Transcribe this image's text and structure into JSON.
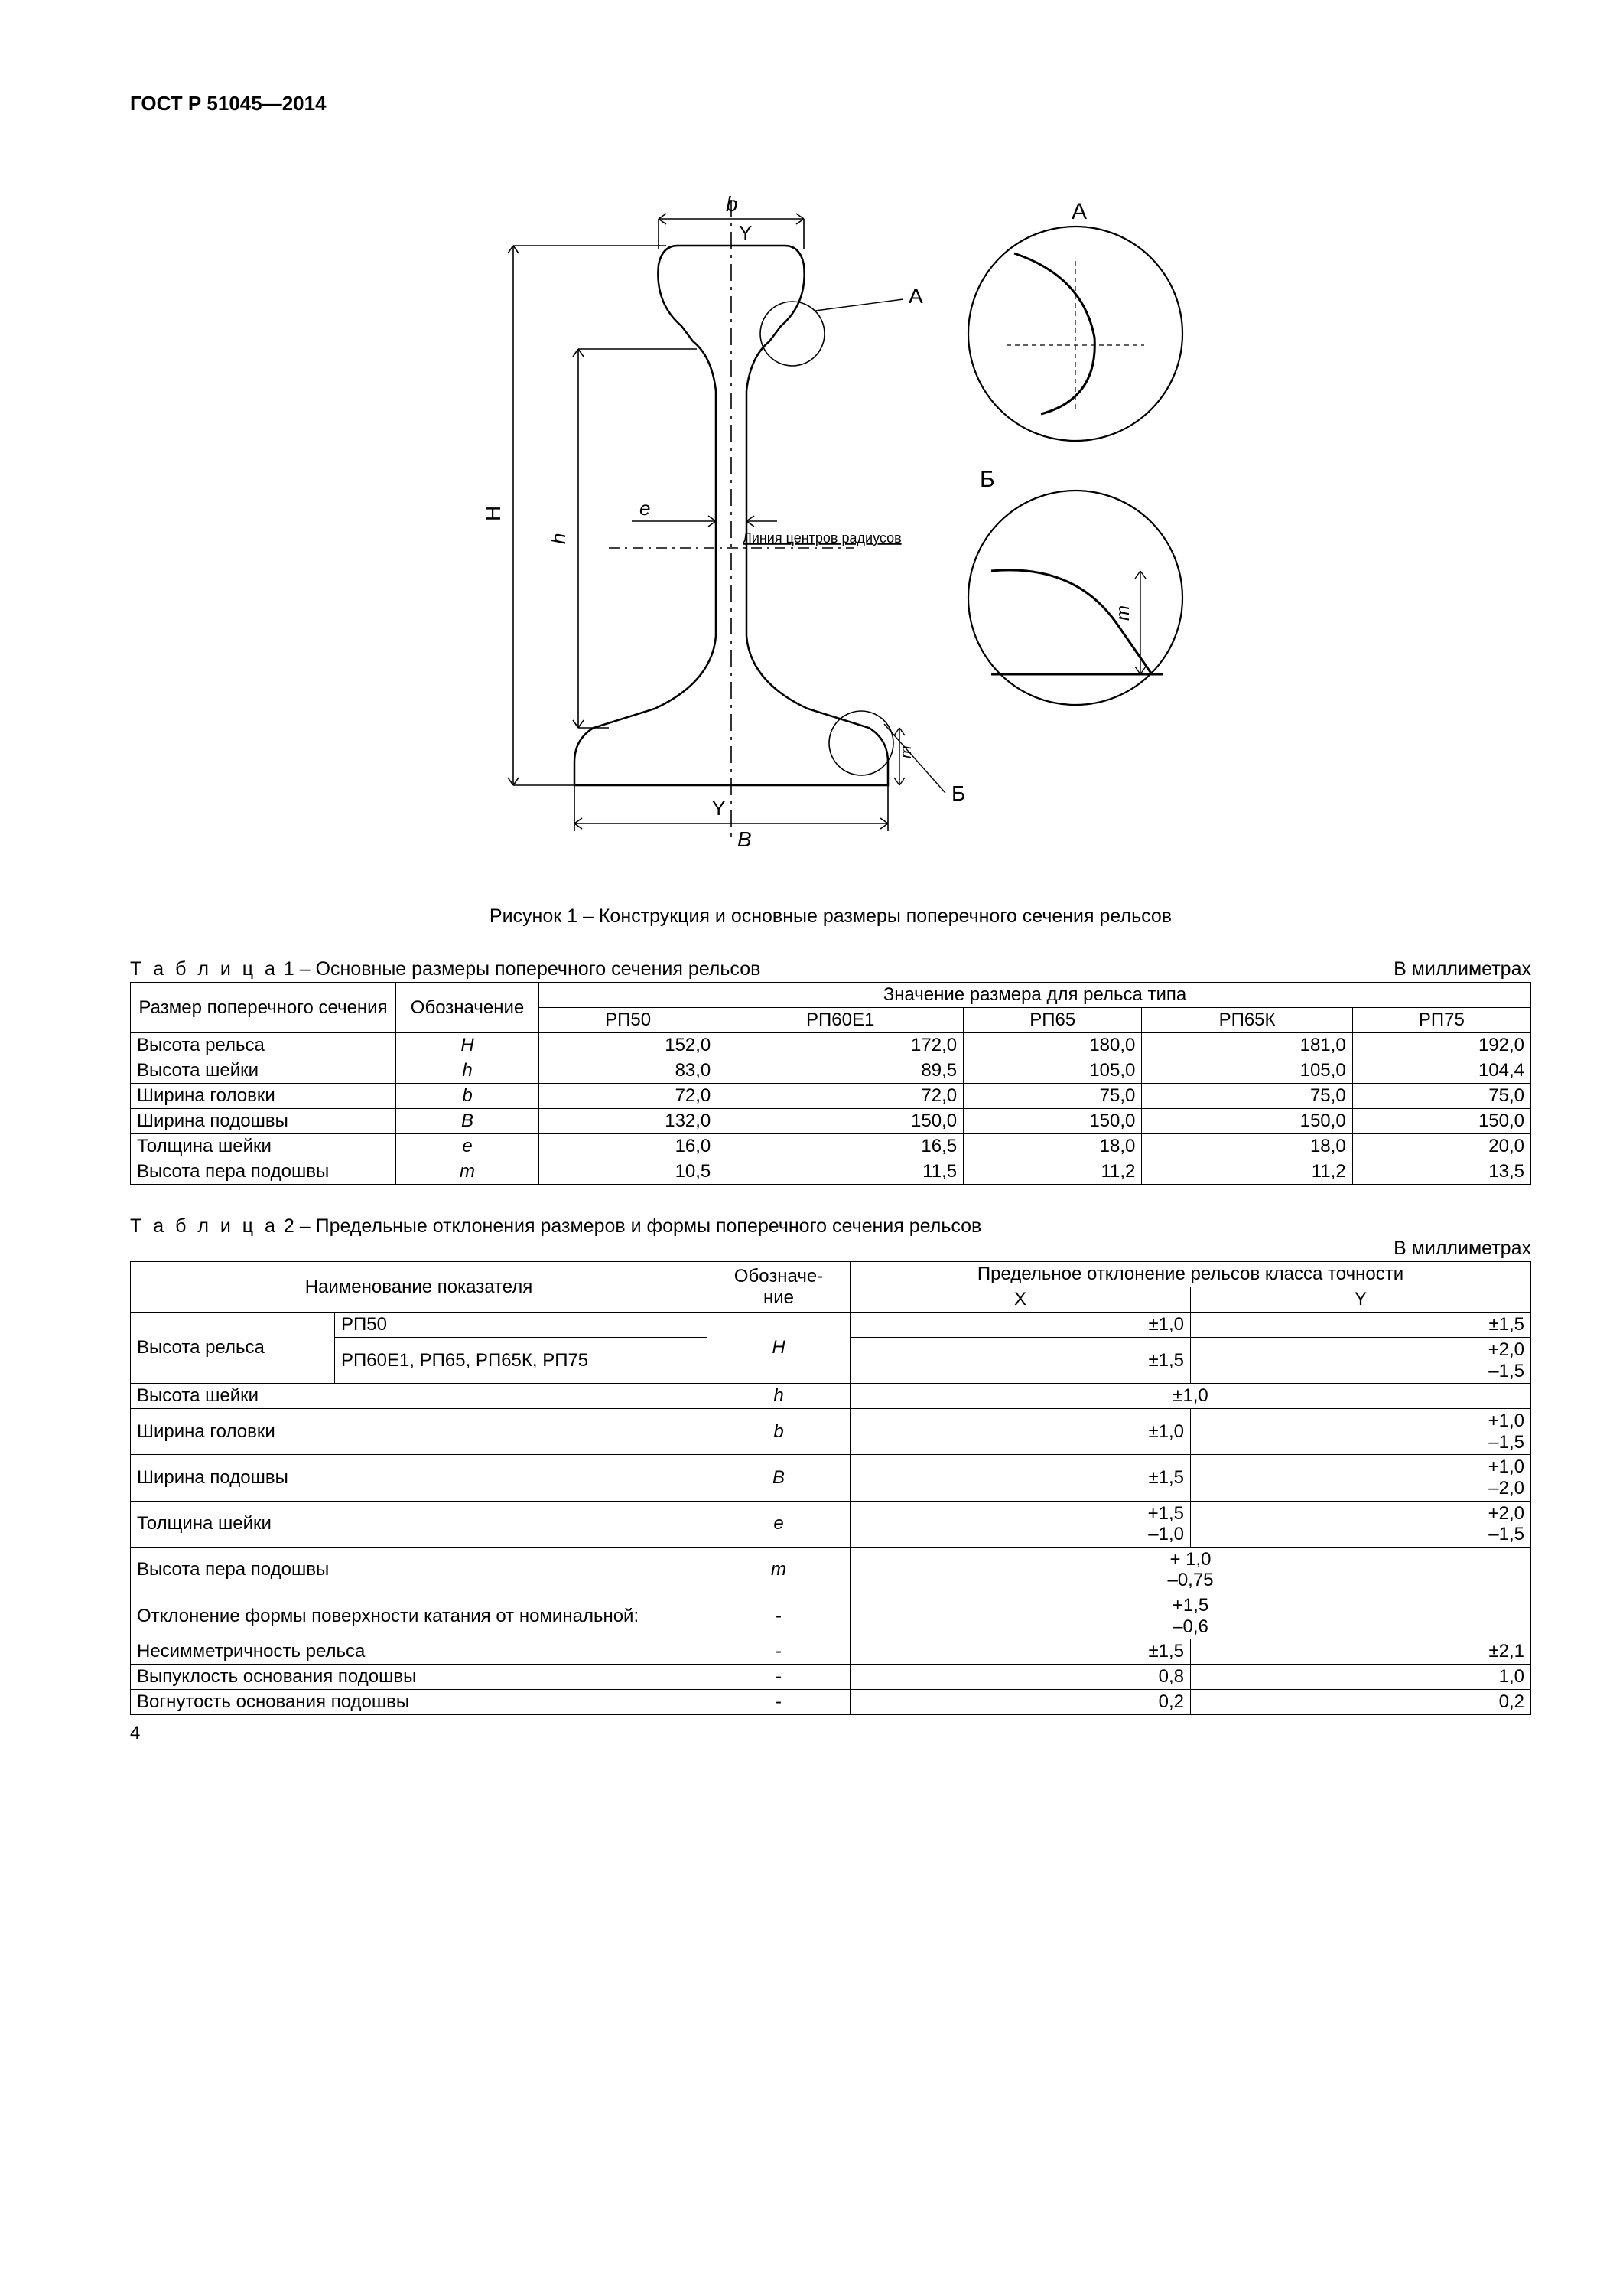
{
  "header": "ГОСТ Р 51045—2014",
  "page_number": "4",
  "figure": {
    "caption": "Рисунок 1 – Конструкция и основные размеры поперечного сечения рельсов",
    "labels": {
      "b": "b",
      "Y_top": "Y",
      "A_detail": "A",
      "A_callout": "A",
      "B_detail": "Б",
      "B_callout": "Б",
      "H": "H",
      "h": "h",
      "e": "e",
      "m_top": "m",
      "m_bot": "m",
      "Y_bot": "Y",
      "B_dim": "B",
      "radius_line": "Линия центров радиусов"
    }
  },
  "table1": {
    "title_prefix": "Т а б л и ц а",
    "title_rest": "  1 – Основные размеры поперечного сечения рельсов",
    "unit": "В миллиметрах",
    "hdr_param": "Размер поперечного сечения",
    "hdr_oboz": "Обозначение",
    "hdr_group": "Значение размера для рельса типа",
    "cols": [
      "РП50",
      "РП60Е1",
      "РП65",
      "РП65К",
      "РП75"
    ],
    "rows": [
      {
        "p": "Высота рельса",
        "s": "H",
        "it": true,
        "v": [
          "152,0",
          "172,0",
          "180,0",
          "181,0",
          "192,0"
        ]
      },
      {
        "p": "Высота шейки",
        "s": "h",
        "it": true,
        "v": [
          "83,0",
          "89,5",
          "105,0",
          "105,0",
          "104,4"
        ]
      },
      {
        "p": "Ширина головки",
        "s": "b",
        "it": true,
        "v": [
          "72,0",
          "72,0",
          "75,0",
          "75,0",
          "75,0"
        ]
      },
      {
        "p": "Ширина подошвы",
        "s": "B",
        "it": true,
        "v": [
          "132,0",
          "150,0",
          "150,0",
          "150,0",
          "150,0"
        ]
      },
      {
        "p": "Толщина шейки",
        "s": "e",
        "it": true,
        "v": [
          "16,0",
          "16,5",
          "18,0",
          "18,0",
          "20,0"
        ]
      },
      {
        "p": "Высота пера подошвы",
        "s": "m",
        "it": true,
        "v": [
          "10,5",
          "11,5",
          "11,2",
          "11,2",
          "13,5"
        ]
      }
    ]
  },
  "table2": {
    "title_prefix": "Т а б л и ц а",
    "title_rest": "  2 – Предельные отклонения размеров и формы поперечного сечения рельсов",
    "unit": "В миллиметрах",
    "hdr_name": "Наименование показателя",
    "hdr_oboz": "Обозначе-\nние",
    "hdr_group": "Предельное отклонение рельсов класса точности",
    "hdr_X": "X",
    "hdr_Y": "Y",
    "r1": {
      "name": "Высота рельса",
      "sub1": "РП50",
      "sub2": "РП60Е1, РП65, РП65К, РП75",
      "sym": "H",
      "x1": "±1,0",
      "y1": "±1,5",
      "x2": "±1,5",
      "y2": "+2,0\n–1,5"
    },
    "r2": {
      "name": "Высота шейки",
      "sym": "h",
      "merged": "±1,0"
    },
    "r3": {
      "name": "Ширина головки",
      "sym": "b",
      "x": "±1,0",
      "y": "+1,0\n–1,5"
    },
    "r4": {
      "name": "Ширина подошвы",
      "sym": "B",
      "x": "±1,5",
      "y": "+1,0\n–2,0"
    },
    "r5": {
      "name": "Толщина шейки",
      "sym": "e",
      "x": "+1,5\n–1,0",
      "y": "+2,0\n–1,5"
    },
    "r6": {
      "name": "Высота пера подошвы",
      "sym": "m",
      "merged": "+ 1,0\n–0,75"
    },
    "r7": {
      "name": "Отклонение формы поверхности катания от номинальной:",
      "sym": "-",
      "merged": "+1,5\n–0,6"
    },
    "r8": {
      "name": "Несимметричность рельса",
      "sym": "-",
      "x": "±1,5",
      "y": "±2,1"
    },
    "r9": {
      "name": "Выпуклость основания подошвы",
      "sym": "-",
      "x": "0,8",
      "y": "1,0"
    },
    "r10": {
      "name": "Вогнутость основания подошвы",
      "sym": "-",
      "x": "0,2",
      "y": "0,2"
    }
  }
}
